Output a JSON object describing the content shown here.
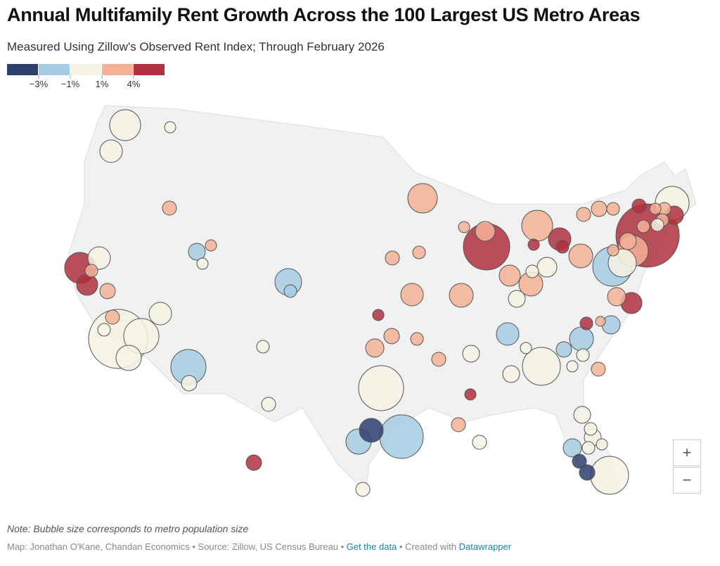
{
  "header": {
    "title": "Annual Multifamily Rent Growth Across the 100 Largest US Metro Areas",
    "subtitle": "Measured Using Zillow's Observed Rent Index; Through February 2026"
  },
  "legend": {
    "colors": [
      "#2e3f6e",
      "#a6cbe3",
      "#f4f3e4",
      "#f4b195",
      "#b0303f"
    ],
    "labels": [
      "−3%",
      "−1%",
      "1%",
      "4%"
    ]
  },
  "controls": [
    "+",
    "−"
  ],
  "note": "Note: Bubble size corresponds to metro population size",
  "footer": {
    "credit": "Map: Jonathan O'Kane, Chandan Economics • Source: Zillow, US Census Bureau • ",
    "data_link": "Get the data",
    "separator": " • Created with ",
    "tool_link": "Datawrapper"
  }
}
